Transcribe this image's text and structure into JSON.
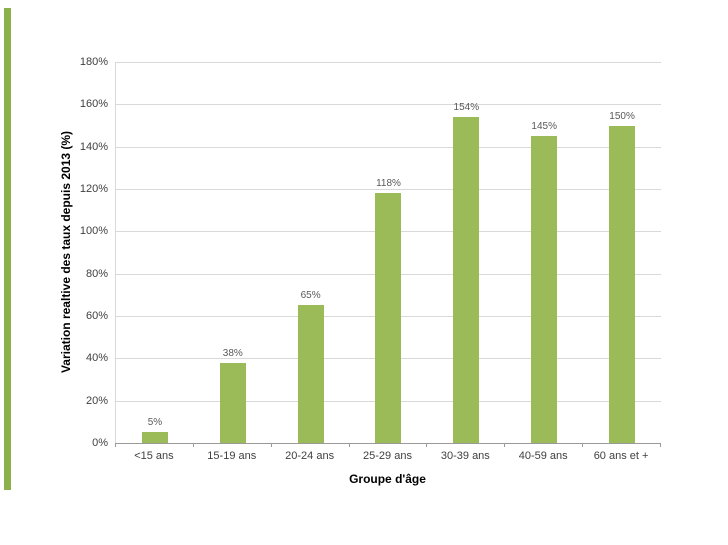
{
  "accent": {
    "stripe_color": "#8cb14c"
  },
  "chart_data": {
    "type": "bar",
    "title": "",
    "categories": [
      "<15 ans",
      "15-19 ans",
      "20-24 ans",
      "25-29 ans",
      "30-39 ans",
      "40-59 ans",
      "60 ans et +"
    ],
    "values": [
      5,
      38,
      65,
      118,
      154,
      145,
      150
    ],
    "value_labels": [
      "5%",
      "38%",
      "65%",
      "118%",
      "154%",
      "145%",
      "150%"
    ],
    "xlabel": "Groupe d'âge",
    "ylabel": "Variation realtive des taux depuis 2013 (%)",
    "ylim": [
      0,
      180
    ],
    "ytick_step": 20,
    "ytick_labels": [
      "0%",
      "20%",
      "40%",
      "60%",
      "80%",
      "100%",
      "120%",
      "140%",
      "160%",
      "180%"
    ],
    "bar_color": "#9bbb59",
    "grid": true,
    "legend": "none"
  }
}
